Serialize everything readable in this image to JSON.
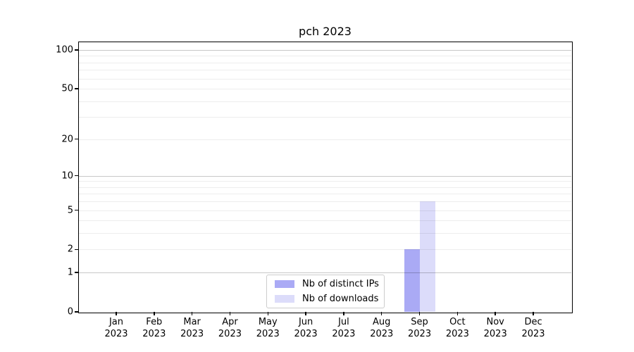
{
  "chart_data": {
    "type": "bar",
    "title": "pch 2023",
    "categories": [
      "Jan",
      "Feb",
      "Mar",
      "Apr",
      "May",
      "Jun",
      "Jul",
      "Aug",
      "Sep",
      "Oct",
      "Nov",
      "Dec"
    ],
    "year_label": "2023",
    "series": [
      {
        "name": "Nb of distinct IPs",
        "color": "#aaaaf5",
        "values": [
          0,
          0,
          0,
          0,
          0,
          0,
          0,
          0,
          2,
          0,
          0,
          0
        ]
      },
      {
        "name": "Nb of downloads",
        "color": "#dcdcfa",
        "values": [
          0,
          0,
          0,
          0,
          0,
          0,
          0,
          0,
          6,
          0,
          0,
          0
        ]
      }
    ],
    "y_axis": {
      "scale": "log1p",
      "ticks": [
        0,
        1,
        2,
        5,
        10,
        20,
        50,
        100
      ],
      "major_gridlines": [
        1,
        10,
        100
      ],
      "minor_gridlines": [
        2,
        3,
        4,
        5,
        6,
        7,
        8,
        9,
        20,
        30,
        40,
        50,
        60,
        70,
        80,
        90
      ],
      "max": 114.6
    },
    "ylim": [
      0,
      114.6
    ],
    "grid": true,
    "legend": {
      "position": "lower center",
      "entries": [
        "Nb of distinct IPs",
        "Nb of downloads"
      ]
    }
  },
  "colors": {
    "axis": "#000000",
    "bar_distinct_ips": "#aaaaf5",
    "bar_downloads": "#dcdcfa",
    "legend_border": "#cccccc",
    "background": "#ffffff"
  }
}
